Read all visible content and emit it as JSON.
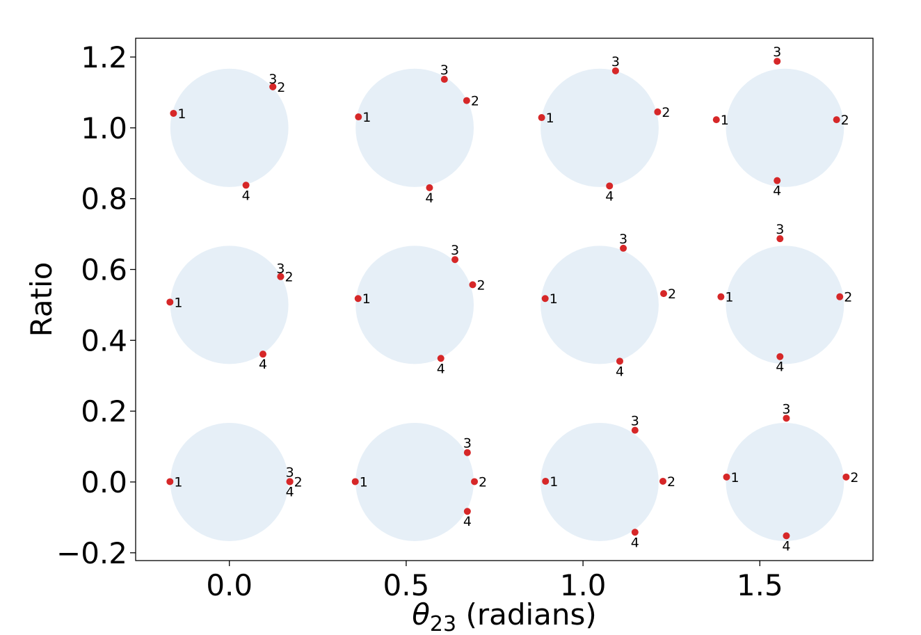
{
  "chart_data": {
    "type": "scatter",
    "title": "",
    "xlabel": "θ23 (radians)",
    "ylabel": "Ratio",
    "xlim": [
      -0.265,
      1.82
    ],
    "ylim": [
      -0.222,
      1.253
    ],
    "xticks": [
      {
        "value": 0.0,
        "label": "0.0"
      },
      {
        "value": 0.5,
        "label": "0.5"
      },
      {
        "value": 1.0,
        "label": "1.0"
      },
      {
        "value": 1.5,
        "label": "1.5"
      }
    ],
    "yticks": [
      {
        "value": -0.2,
        "label": "−0.2"
      },
      {
        "value": 0.0,
        "label": "0.0"
      },
      {
        "value": 0.2,
        "label": "0.2"
      },
      {
        "value": 0.4,
        "label": "0.4"
      },
      {
        "value": 0.6,
        "label": "0.6"
      },
      {
        "value": 0.8,
        "label": "0.8"
      },
      {
        "value": 1.0,
        "label": "1.0"
      },
      {
        "value": 1.2,
        "label": "1.2"
      }
    ],
    "grid": false,
    "circle_color": "#e6eff7",
    "point_color": "#d62728",
    "circles": [
      {
        "center": [
          0.0,
          1.0
        ],
        "radius": 0.167
      },
      {
        "center": [
          0.524,
          1.0
        ],
        "radius": 0.167
      },
      {
        "center": [
          1.047,
          1.0
        ],
        "radius": 0.167
      },
      {
        "center": [
          1.571,
          1.0
        ],
        "radius": 0.167
      },
      {
        "center": [
          0.0,
          0.5
        ],
        "radius": 0.167
      },
      {
        "center": [
          0.524,
          0.5
        ],
        "radius": 0.167
      },
      {
        "center": [
          1.047,
          0.5
        ],
        "radius": 0.167
      },
      {
        "center": [
          1.571,
          0.5
        ],
        "radius": 0.167
      },
      {
        "center": [
          0.0,
          0.0
        ],
        "radius": 0.167
      },
      {
        "center": [
          0.524,
          0.0
        ],
        "radius": 0.167
      },
      {
        "center": [
          1.047,
          0.0
        ],
        "radius": 0.167
      },
      {
        "center": [
          1.571,
          0.0
        ],
        "radius": 0.167
      }
    ],
    "points": [
      {
        "x": -0.158,
        "y": 1.041,
        "label": "1",
        "anchor": "right"
      },
      {
        "x": 0.123,
        "y": 1.116,
        "label": "2",
        "anchor": "right"
      },
      {
        "x": 0.123,
        "y": 1.116,
        "label": "3",
        "anchor": "above-left"
      },
      {
        "x": 0.047,
        "y": 0.838,
        "label": "4",
        "anchor": "below"
      },
      {
        "x": 0.365,
        "y": 1.031,
        "label": "1",
        "anchor": "right"
      },
      {
        "x": 0.671,
        "y": 1.077,
        "label": "2",
        "anchor": "right"
      },
      {
        "x": 0.608,
        "y": 1.137,
        "label": "3",
        "anchor": "above"
      },
      {
        "x": 0.566,
        "y": 0.831,
        "label": "4",
        "anchor": "below"
      },
      {
        "x": 0.883,
        "y": 1.029,
        "label": "1",
        "anchor": "right"
      },
      {
        "x": 1.211,
        "y": 1.045,
        "label": "2",
        "anchor": "right"
      },
      {
        "x": 1.092,
        "y": 1.161,
        "label": "3",
        "anchor": "above"
      },
      {
        "x": 1.075,
        "y": 0.836,
        "label": "4",
        "anchor": "below"
      },
      {
        "x": 1.377,
        "y": 1.023,
        "label": "1",
        "anchor": "right"
      },
      {
        "x": 1.717,
        "y": 1.023,
        "label": "2",
        "anchor": "right"
      },
      {
        "x": 1.549,
        "y": 1.188,
        "label": "3",
        "anchor": "above"
      },
      {
        "x": 1.549,
        "y": 0.851,
        "label": "4",
        "anchor": "below"
      },
      {
        "x": -0.168,
        "y": 0.508,
        "label": "1",
        "anchor": "right"
      },
      {
        "x": 0.145,
        "y": 0.58,
        "label": "2",
        "anchor": "right"
      },
      {
        "x": 0.145,
        "y": 0.58,
        "label": "3",
        "anchor": "above-left"
      },
      {
        "x": 0.095,
        "y": 0.361,
        "label": "4",
        "anchor": "below"
      },
      {
        "x": 0.364,
        "y": 0.518,
        "label": "1",
        "anchor": "right"
      },
      {
        "x": 0.688,
        "y": 0.557,
        "label": "2",
        "anchor": "right"
      },
      {
        "x": 0.638,
        "y": 0.628,
        "label": "3",
        "anchor": "above"
      },
      {
        "x": 0.598,
        "y": 0.349,
        "label": "4",
        "anchor": "below"
      },
      {
        "x": 0.893,
        "y": 0.518,
        "label": "1",
        "anchor": "right"
      },
      {
        "x": 1.228,
        "y": 0.532,
        "label": "2",
        "anchor": "right"
      },
      {
        "x": 1.114,
        "y": 0.66,
        "label": "3",
        "anchor": "above"
      },
      {
        "x": 1.104,
        "y": 0.341,
        "label": "4",
        "anchor": "below"
      },
      {
        "x": 1.39,
        "y": 0.523,
        "label": "1",
        "anchor": "right"
      },
      {
        "x": 1.726,
        "y": 0.523,
        "label": "2",
        "anchor": "right"
      },
      {
        "x": 1.557,
        "y": 0.687,
        "label": "3",
        "anchor": "above"
      },
      {
        "x": 1.557,
        "y": 0.354,
        "label": "4",
        "anchor": "below"
      },
      {
        "x": -0.168,
        "y": 0.001,
        "label": "1",
        "anchor": "right"
      },
      {
        "x": 0.171,
        "y": 0.001,
        "label": "2",
        "anchor": "right"
      },
      {
        "x": 0.171,
        "y": 0.001,
        "label": "3",
        "anchor": "above"
      },
      {
        "x": 0.171,
        "y": 0.001,
        "label": "4",
        "anchor": "below"
      },
      {
        "x": 0.356,
        "y": 0.001,
        "label": "1",
        "anchor": "right"
      },
      {
        "x": 0.693,
        "y": 0.001,
        "label": "2",
        "anchor": "right"
      },
      {
        "x": 0.673,
        "y": 0.083,
        "label": "3",
        "anchor": "above"
      },
      {
        "x": 0.673,
        "y": -0.083,
        "label": "4",
        "anchor": "below"
      },
      {
        "x": 0.894,
        "y": 0.002,
        "label": "1",
        "anchor": "right"
      },
      {
        "x": 1.226,
        "y": 0.002,
        "label": "2",
        "anchor": "right"
      },
      {
        "x": 1.147,
        "y": 0.146,
        "label": "3",
        "anchor": "above"
      },
      {
        "x": 1.147,
        "y": -0.142,
        "label": "4",
        "anchor": "below"
      },
      {
        "x": 1.406,
        "y": 0.014,
        "label": "1",
        "anchor": "right"
      },
      {
        "x": 1.744,
        "y": 0.014,
        "label": "2",
        "anchor": "right"
      },
      {
        "x": 1.575,
        "y": 0.18,
        "label": "3",
        "anchor": "above"
      },
      {
        "x": 1.575,
        "y": -0.152,
        "label": "4",
        "anchor": "below"
      }
    ]
  }
}
